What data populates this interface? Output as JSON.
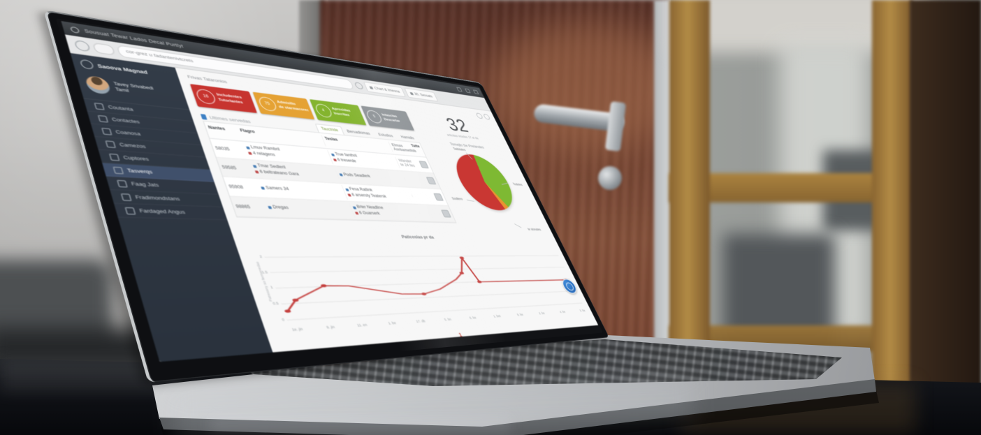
{
  "colors": {
    "badge_red": "#c7342f",
    "badge_orange": "#e5a234",
    "badge_green": "#84b42e",
    "badge_gray": "#8b9094",
    "pie_red": "#c8332f",
    "pie_green": "#7cb82f",
    "pie_orange": "#e8912d",
    "line_red": "#c4403e",
    "widget_blue": "#1b5dad"
  },
  "browser": {
    "window_title": "Sousuat Tewar Lados Decal Purtlyt",
    "url": "cor-grez u fadantenivtcrets",
    "chips": [
      {
        "icon": "chart-icon",
        "label": "Chart & Imesna"
      },
      {
        "icon": "person-icon",
        "label": "30. Sessats"
      }
    ]
  },
  "sidebar": {
    "brand": "Saoova Magnad",
    "user_name": "Tavey Srivabedi",
    "user_role": "Tamil",
    "items": [
      {
        "icon": "doc-icon",
        "label": "Coutanta"
      },
      {
        "icon": "contacts-icon",
        "label": "Contactes"
      },
      {
        "icon": "chat-icon",
        "label": "Coanosa"
      },
      {
        "icon": "courses-icon",
        "label": "Camezos"
      },
      {
        "icon": "box-icon",
        "label": "Cuptores"
      },
      {
        "icon": "scissors-icon",
        "label": "Tasverqs",
        "active": true
      },
      {
        "icon": "tag-icon",
        "label": "Faag Jats"
      },
      {
        "icon": "settings-icon",
        "label": "Fradimondstans"
      },
      {
        "icon": "flag-icon",
        "label": "Fardaged Angus"
      }
    ]
  },
  "page": {
    "title": "Frivas Tataronios",
    "page_indicator": "1"
  },
  "badges": [
    {
      "number": "16",
      "line1": "Includentes",
      "line2": "Tutorlantes",
      "color": "#c7342f"
    },
    {
      "number": "75",
      "line1": "Admisilio",
      "line2": "de starmacores",
      "color": "#e5a234"
    },
    {
      "number": "4",
      "line1": "Aprosidas",
      "line2": "Inscritas",
      "color": "#84b42e"
    },
    {
      "number": "5",
      "line1": "Intasctas",
      "line2": "Descartar",
      "color": "#8b9094"
    }
  ],
  "list_section": {
    "header": "Ultimes servedas",
    "tabs": [
      "Tauctride",
      "Bersadiomas",
      "Estudios",
      "Hamidis"
    ],
    "table": {
      "headers": [
        "Nantes",
        "Flagro",
        "Teslas",
        "Elmas Aorbamethib",
        "Tatte"
      ],
      "rows": [
        {
          "id": "58035",
          "c2l1": "Lmuv Rambril",
          "c2l2": "4 relagens",
          "c3l1": "True fanthril",
          "c3l2": "6 treserde",
          "note": "Wander te 24 fes"
        },
        {
          "id": "59585",
          "c2l1": "Tmar Sedleril",
          "c2l2": "6 beltrateano Gara",
          "c3l1": "Pods Seadlerk",
          "c3l2": "",
          "note": ""
        },
        {
          "id": "95908",
          "c2l1": "Samers 34",
          "c2l2": "",
          "c3l1": "Fesa Ratlink",
          "c3l2": "6 arsersty Teatersk",
          "note": ""
        },
        {
          "id": "98865",
          "c2l1": "Dregas",
          "c2l2": "",
          "c3l1": "Brter Neadline",
          "c3l2": "6 Guarserk",
          "note": ""
        }
      ]
    }
  },
  "stats": {
    "big_number": "32",
    "caption": "articidas intadas 17 at da"
  },
  "pie_chart": {
    "title": "Tomejlo Se Prelandes",
    "type": "pie",
    "slices": [
      {
        "label": "Todotes",
        "value": 41,
        "color": "#7cb82f"
      },
      {
        "label": "te slonates",
        "value": 3,
        "color": "#e8912d"
      },
      {
        "label": "Sodtero",
        "value": 56,
        "color": "#c8332f"
      }
    ],
    "callouts": {
      "top": "Tadstates",
      "right": "Todotes",
      "left": "Sodtero",
      "bottom": "te slonates"
    }
  },
  "line_chart": {
    "title": "Paticoslas pr da",
    "type": "line",
    "ylabel": "Patressny so fermenedas",
    "ymax": 2.2,
    "y_ticks": [
      {
        "label": "2",
        "v": 2
      },
      {
        "label": "1.5",
        "v": 1.5
      },
      {
        "label": "1",
        "v": 1
      },
      {
        "label": "0.5",
        "v": 0.5
      },
      {
        "label": "0",
        "v": 0
      }
    ],
    "x_labels": [
      "1e. jin",
      "9. jin",
      "11. en",
      "1. be",
      "17. db",
      "5. bn",
      "6. be",
      "1. bet",
      "9. be",
      "2. be",
      "4. be",
      "3. ba"
    ],
    "points": [
      {
        "x": 1,
        "v": 0.27,
        "dot": true
      },
      {
        "x": 4,
        "v": 0.6,
        "dot": true
      },
      {
        "x": 13,
        "v": 1.03,
        "dot": true
      },
      {
        "x": 20,
        "v": 1.0,
        "dot": false
      },
      {
        "x": 28,
        "v": 0.82,
        "dot": false
      },
      {
        "x": 35,
        "v": 0.66,
        "dot": false
      },
      {
        "x": 42,
        "v": 0.63,
        "dot": true
      },
      {
        "x": 48,
        "v": 0.78,
        "dot": false
      },
      {
        "x": 55,
        "v": 1.12,
        "dot": false
      },
      {
        "x": 58,
        "v": 1.35,
        "dot": true
      },
      {
        "x": 60.5,
        "v": 1.93,
        "dot": true
      },
      {
        "x": 63,
        "v": 1.0,
        "dot": true
      },
      {
        "x": 98,
        "v": 0.97,
        "dot": true
      }
    ]
  }
}
